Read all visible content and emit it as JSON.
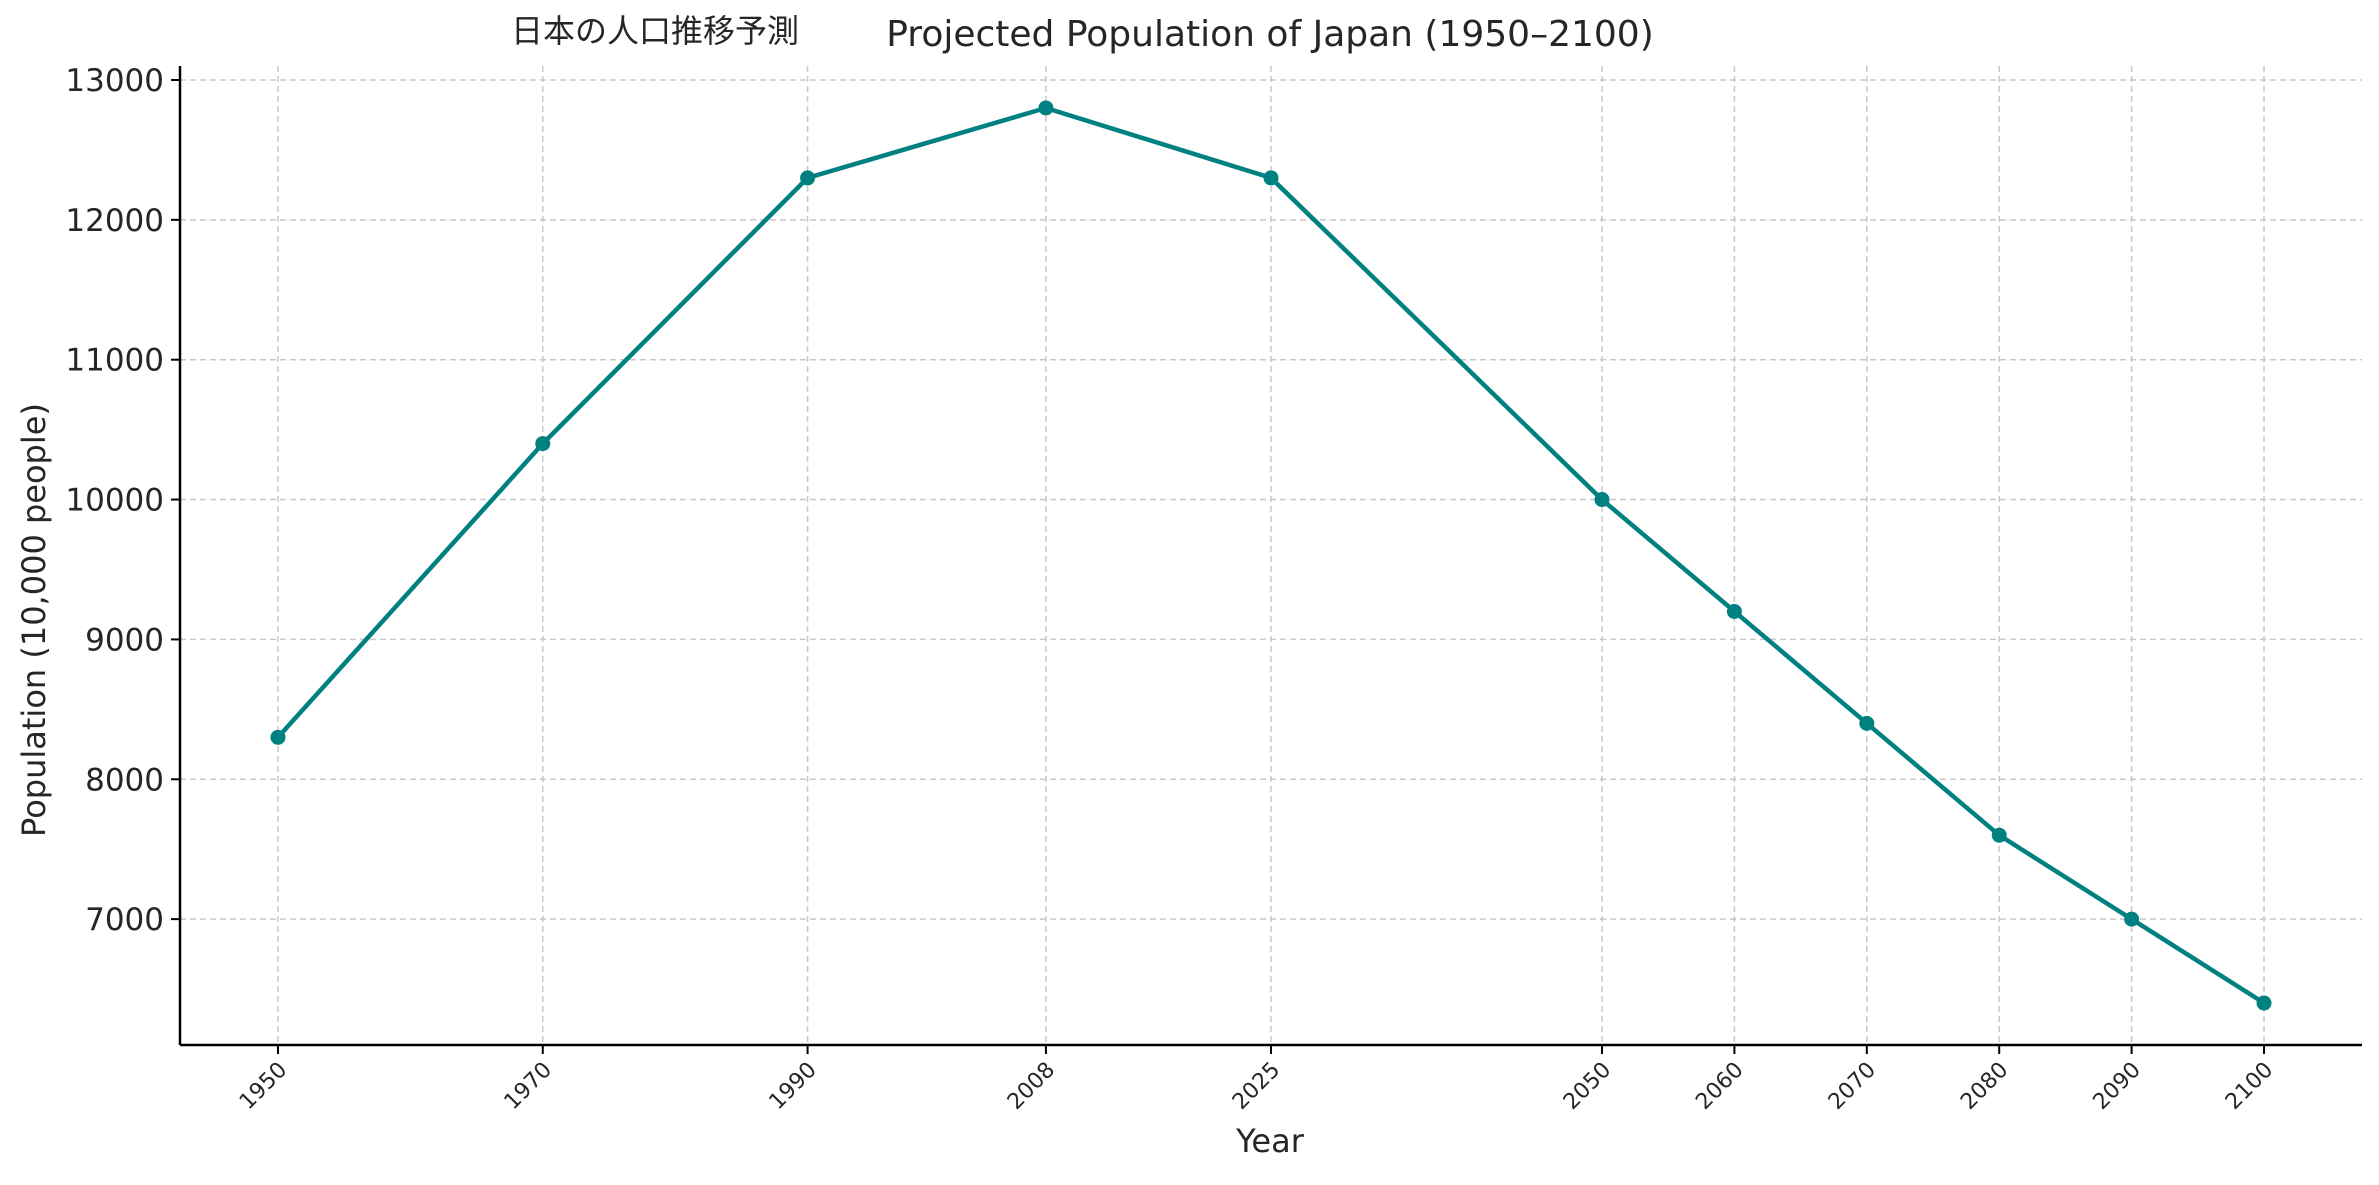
{
  "chart_data": {
    "type": "line",
    "title_jp": "日本の人口推移予測",
    "title": "Projected Population of Japan (1950–2100)",
    "xlabel": "Year",
    "ylabel": "Population (10,000 people)",
    "x": [
      1950,
      1970,
      1990,
      2008,
      2025,
      2050,
      2060,
      2070,
      2080,
      2090,
      2100
    ],
    "x_tick_labels": [
      "1950",
      "1970",
      "1990",
      "2008",
      "2025",
      "2050",
      "2060",
      "2070",
      "2080",
      "2090",
      "2100"
    ],
    "y_ticks": [
      7000,
      8000,
      9000,
      10000,
      11000,
      12000,
      13000
    ],
    "y_tick_labels": [
      "7000",
      "8000",
      "9000",
      "10000",
      "11000",
      "12000",
      "13000"
    ],
    "xlim": [
      1942.6,
      2107.4
    ],
    "ylim": [
      6100,
      13100
    ],
    "grid": true,
    "series": [
      {
        "values": [
          8300,
          10400,
          12300,
          12800,
          12300,
          10000,
          9200,
          8400,
          7600,
          7000,
          6400
        ],
        "color": "#008080"
      }
    ]
  }
}
